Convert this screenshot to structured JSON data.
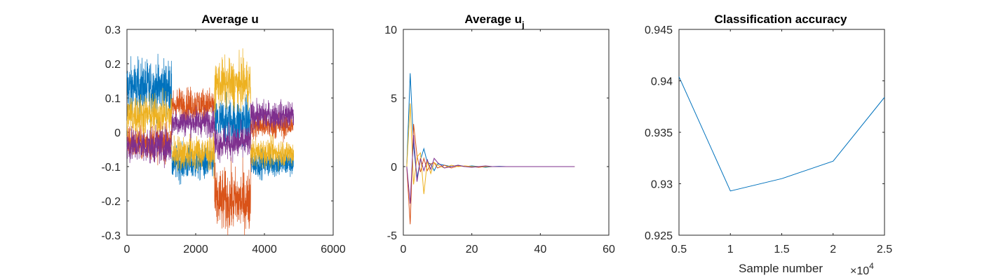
{
  "chart_data": [
    {
      "type": "line",
      "title": "Average u",
      "xlabel": "",
      "ylabel": "",
      "xlim": [
        0,
        6000
      ],
      "ylim": [
        -0.3,
        0.3
      ],
      "xticks": [
        "0",
        "2000",
        "4000",
        "6000"
      ],
      "yticks": [
        "-0.3",
        "-0.2",
        "-0.1",
        "0",
        "0.1",
        "0.2",
        "0.3"
      ],
      "grid": false,
      "noise_traces": true,
      "x_extent": [
        0,
        4850
      ],
      "segments": [
        [
          0,
          1300
        ],
        [
          1300,
          2550
        ],
        [
          2550,
          3600
        ],
        [
          3600,
          4850
        ]
      ],
      "series": [
        {
          "color": "#0072BD",
          "segment_means": [
            0.13,
            -0.09,
            0.03,
            -0.09
          ],
          "noise": [
            0.04,
            0.025,
            0.035,
            0.02
          ]
        },
        {
          "color": "#D95319",
          "segment_means": [
            -0.03,
            0.08,
            -0.2,
            0.02
          ],
          "noise": [
            0.025,
            0.025,
            0.045,
            0.02
          ]
        },
        {
          "color": "#EDB120",
          "segment_means": [
            0.05,
            -0.06,
            0.14,
            -0.06
          ],
          "noise": [
            0.03,
            0.025,
            0.035,
            0.02
          ]
        },
        {
          "color": "#7E2F8E",
          "segment_means": [
            -0.04,
            0.03,
            -0.03,
            0.05
          ],
          "noise": [
            0.025,
            0.02,
            0.025,
            0.02
          ]
        }
      ]
    },
    {
      "type": "line",
      "title": "Average u",
      "title_subscript": "j",
      "xlabel": "",
      "ylabel": "",
      "xlim": [
        0,
        60
      ],
      "ylim": [
        -5,
        10
      ],
      "xticks": [
        "0",
        "20",
        "40",
        "60"
      ],
      "yticks": [
        "-5",
        "0",
        "5",
        "10"
      ],
      "grid": false,
      "x": [
        1,
        2,
        3,
        4,
        5,
        6,
        7,
        8,
        9,
        10,
        12,
        14,
        16,
        18,
        20,
        22,
        24,
        26,
        28,
        30,
        35,
        40,
        45,
        50
      ],
      "series": [
        {
          "color": "#0072BD",
          "values": [
            0,
            6.8,
            1.5,
            -0.8,
            0.5,
            1.3,
            0.3,
            0.2,
            -0.3,
            0.2,
            0.1,
            0.0,
            0.1,
            0.0,
            0.05,
            0.0,
            -0.05,
            0.0,
            0.02,
            0.0,
            0.0,
            0.0,
            0.0,
            0.0
          ]
        },
        {
          "color": "#D95319",
          "values": [
            0,
            -4.2,
            3.1,
            0.8,
            -0.4,
            0.6,
            -0.3,
            0.2,
            0.3,
            -0.1,
            0.1,
            -0.1,
            0.05,
            0.0,
            0.0,
            -0.05,
            0.0,
            0.0,
            0.0,
            0.0,
            0.0,
            0.0,
            0.0,
            0.0
          ]
        },
        {
          "color": "#EDB120",
          "values": [
            0,
            4.6,
            -1.3,
            0.7,
            1.0,
            -2.0,
            0.4,
            -0.5,
            0.3,
            0.1,
            -0.1,
            0.1,
            0.0,
            0.05,
            0.0,
            0.0,
            0.0,
            0.0,
            0.0,
            0.0,
            0.0,
            0.0,
            0.0,
            0.0
          ]
        },
        {
          "color": "#7E2F8E",
          "values": [
            0,
            -2.7,
            2.3,
            -1.1,
            0.6,
            -0.3,
            0.5,
            -0.2,
            0.6,
            0.3,
            -0.1,
            0.0,
            0.1,
            0.0,
            -0.05,
            0.0,
            0.05,
            0.0,
            0.0,
            0.0,
            0.0,
            0.0,
            0.0,
            0.0
          ]
        }
      ]
    },
    {
      "type": "line",
      "title": "Classification accuracy",
      "xlabel": "Sample number",
      "ylabel": "",
      "xlim": [
        5000,
        25000
      ],
      "ylim": [
        0.925,
        0.945
      ],
      "xticks": [
        "0.5",
        "1",
        "1.5",
        "2",
        "2.5"
      ],
      "yticks": [
        "0.925",
        "0.93",
        "0.935",
        "0.94",
        "0.945"
      ],
      "x_multiplier": "×10",
      "x_multiplier_exponent": "4",
      "grid": false,
      "x": [
        5000,
        10000,
        15000,
        20000,
        25000
      ],
      "series": [
        {
          "color": "#0072BD",
          "values": [
            0.9404,
            0.9293,
            0.9305,
            0.9322,
            0.9384
          ]
        }
      ]
    }
  ]
}
